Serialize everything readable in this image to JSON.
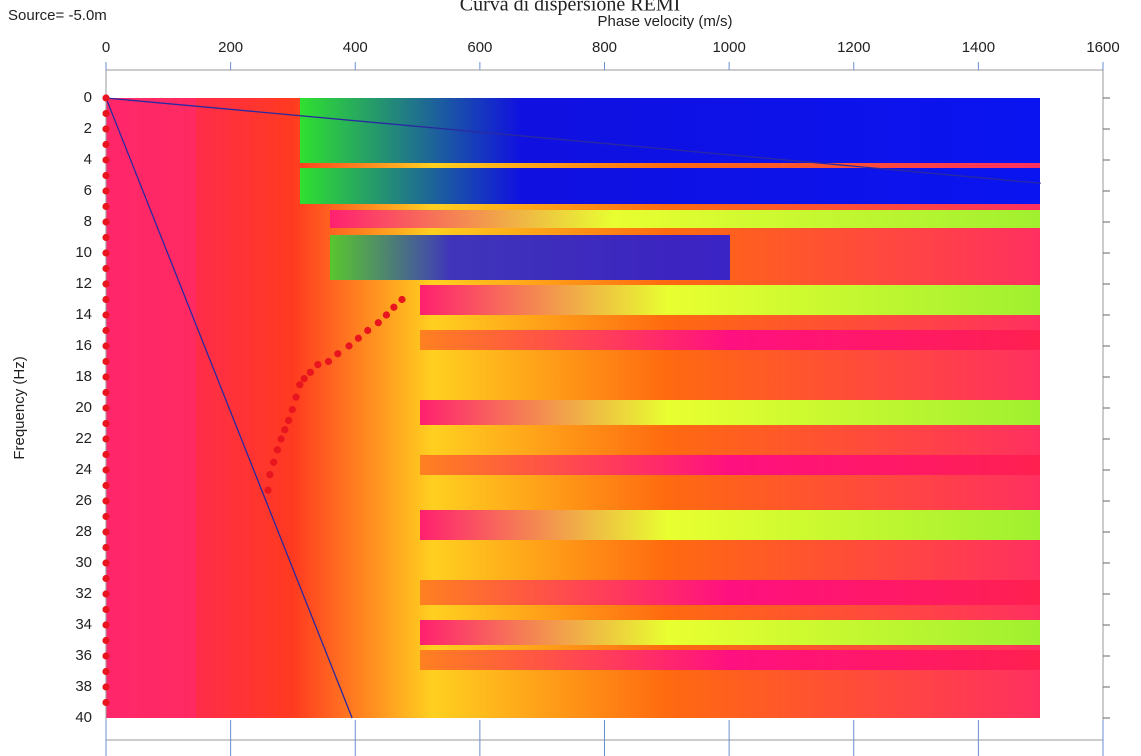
{
  "chart_data": {
    "type": "scatter",
    "title": "Curva di dispersione REMI",
    "annotation": "Source= -5.0m",
    "x_label": "Phase velocity (m/s)",
    "y_label": "Frequency (Hz)",
    "xlim": [
      0,
      1600
    ],
    "xticks": [
      0,
      200,
      400,
      600,
      800,
      1000,
      1200,
      1400,
      1600
    ],
    "ylim": [
      0,
      40
    ],
    "y_inverted": true,
    "yticks": [
      0,
      2,
      4,
      6,
      8,
      10,
      12,
      14,
      16,
      18,
      20,
      22,
      24,
      26,
      28,
      30,
      32,
      34,
      36,
      38,
      40
    ],
    "series": [
      {
        "color": "#e8141e",
        "x": [
          475,
          462,
          450,
          437,
          420,
          405,
          390,
          372,
          357,
          340,
          328,
          318,
          311,
          305,
          299,
          293,
          287,
          281,
          275,
          269,
          263,
          260
        ],
        "y": [
          13.0,
          13.5,
          14.0,
          14.5,
          15.0,
          15.5,
          16.0,
          16.5,
          17.0,
          17.2,
          17.7,
          18.1,
          18.5,
          19.3,
          20.1,
          20.8,
          21.4,
          22.0,
          22.7,
          23.5,
          24.3,
          25.3
        ]
      },
      {
        "color": "#e8141e",
        "x": [
          0,
          0,
          0,
          0,
          0,
          0,
          0,
          0,
          0,
          0,
          0,
          0,
          0,
          0,
          0,
          0,
          0,
          0,
          0,
          0,
          0,
          0,
          0,
          0,
          0,
          0,
          0,
          0,
          0,
          0,
          0,
          0,
          0,
          0,
          0,
          0,
          0,
          0,
          0,
          0
        ],
        "y": [
          0,
          1,
          2,
          3,
          4,
          5,
          6,
          7,
          8,
          9,
          10,
          11,
          12,
          13,
          14,
          15,
          16,
          17,
          18,
          19,
          20,
          21,
          22,
          23,
          24,
          25,
          26,
          27,
          28,
          29,
          30,
          31,
          32,
          33,
          34,
          35,
          36,
          37,
          38,
          39
        ]
      }
    ],
    "lines": [
      {
        "color": "#2a2aa0",
        "x": [
          0,
          1500
        ],
        "y": [
          0,
          5.5
        ]
      },
      {
        "color": "#2a2aa0",
        "x": [
          0,
          395
        ],
        "y": [
          0,
          40
        ]
      }
    ]
  }
}
